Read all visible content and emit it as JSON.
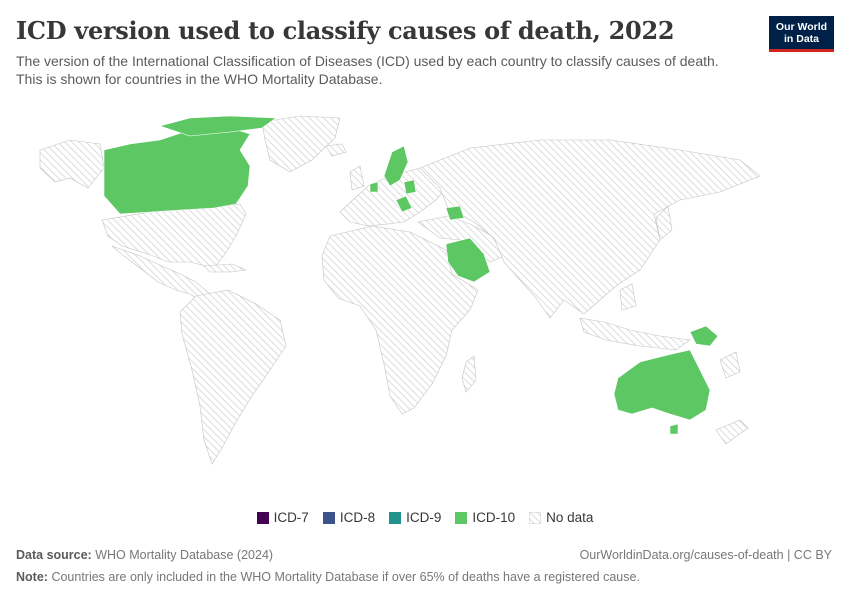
{
  "header": {
    "title": "ICD version used to classify causes of death, 2022",
    "subtitle": "The version of the International Classification of Diseases (ICD) used by each country to classify causes of death. This is shown for countries in the WHO Mortality Database.",
    "logo_line1": "Our World",
    "logo_line2": "in Data"
  },
  "colors": {
    "icd7": "#440154",
    "icd8": "#3b528b",
    "icd9": "#21918c",
    "icd10": "#5dc863",
    "no_data_hatch": "#cfcfcf",
    "border": "#c7c7c7"
  },
  "legend": {
    "items": [
      {
        "label": "ICD-7",
        "color": "#440154"
      },
      {
        "label": "ICD-8",
        "color": "#3b528b"
      },
      {
        "label": "ICD-9",
        "color": "#21918c"
      },
      {
        "label": "ICD-10",
        "color": "#5dc863"
      },
      {
        "label": "No data",
        "color": "hatch"
      }
    ]
  },
  "footer": {
    "source_label": "Data source:",
    "source_text": "WHO Mortality Database (2024)",
    "url_text": "OurWorldinData.org/causes-of-death | CC BY",
    "note_label": "Note:",
    "note_text": "Countries are only included in the WHO Mortality Database if over 65% of deaths have a registered cause."
  }
}
